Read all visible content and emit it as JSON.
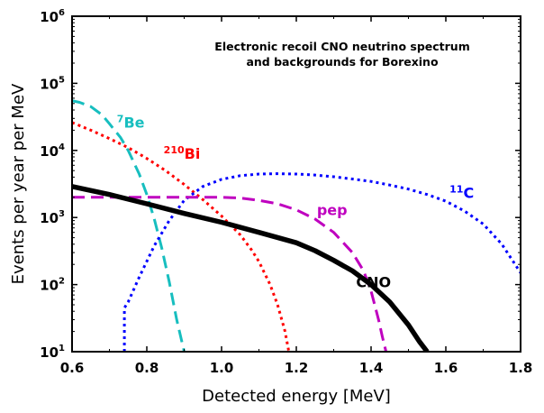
{
  "chart_data": {
    "type": "line",
    "title": "Electronic recoil CNO neutrino spectrum",
    "subtitle": "and backgrounds for Borexino",
    "xlabel": "Detected energy [MeV]",
    "ylabel": "Events per year per MeV",
    "xlim": [
      0.6,
      1.8
    ],
    "ylim": [
      10,
      1000000
    ],
    "yscale": "log",
    "x_ticks": [
      0.6,
      0.8,
      1.0,
      1.2,
      1.4,
      1.6,
      1.8
    ],
    "x_tick_labels": [
      "0.6",
      "0.8",
      "1.0",
      "1.2",
      "1.4",
      "1.6",
      "1.8"
    ],
    "y_ticks": [
      10,
      100,
      1000,
      10000,
      100000,
      1000000
    ],
    "y_tick_labels": [
      {
        "base": "10",
        "exp": "1"
      },
      {
        "base": "10",
        "exp": "2"
      },
      {
        "base": "10",
        "exp": "3"
      },
      {
        "base": "10",
        "exp": "4"
      },
      {
        "base": "10",
        "exp": "5"
      },
      {
        "base": "10",
        "exp": "6"
      }
    ],
    "series": [
      {
        "name": "7Be",
        "label_sup": "7",
        "label_main": "Be",
        "label_at": [
          0.72,
          22000
        ],
        "color": "#17bebf",
        "dash": "dashed",
        "width": 3,
        "x": [
          0.6,
          0.62,
          0.65,
          0.68,
          0.7,
          0.73,
          0.75,
          0.78,
          0.8,
          0.82,
          0.84,
          0.86,
          0.88,
          0.9
        ],
        "y": [
          55000,
          52000,
          45000,
          34000,
          25000,
          15500,
          10000,
          4400,
          2200,
          950,
          350,
          110,
          30,
          10
        ]
      },
      {
        "name": "210Bi",
        "label_sup": "210",
        "label_main": "Bi",
        "label_at": [
          0.845,
          7500
        ],
        "color": "#ff0000",
        "dash": "dotted",
        "width": 3,
        "x": [
          0.6,
          0.65,
          0.7,
          0.75,
          0.8,
          0.85,
          0.9,
          0.95,
          1.0,
          1.05,
          1.08,
          1.1,
          1.13,
          1.15,
          1.17,
          1.18
        ],
        "y": [
          26000,
          20000,
          15000,
          11000,
          7600,
          5000,
          3100,
          1850,
          1050,
          550,
          330,
          220,
          100,
          50,
          20,
          10
        ]
      },
      {
        "name": "11C",
        "label_sup": "11",
        "label_main": "C",
        "label_at": [
          1.61,
          1950
        ],
        "color": "#0000ff",
        "dash": "dotted",
        "width": 3,
        "x": [
          0.74,
          0.74,
          0.75,
          0.78,
          0.82,
          0.86,
          0.9,
          0.95,
          1.0,
          1.05,
          1.1,
          1.15,
          1.2,
          1.25,
          1.3,
          1.35,
          1.4,
          1.45,
          1.5,
          1.55,
          1.6,
          1.65,
          1.7,
          1.75,
          1.8
        ],
        "y": [
          10,
          45,
          55,
          130,
          380,
          900,
          1800,
          2900,
          3700,
          4200,
          4450,
          4500,
          4450,
          4300,
          4050,
          3750,
          3450,
          3050,
          2650,
          2200,
          1750,
          1250,
          800,
          400,
          150
        ]
      },
      {
        "name": "pep",
        "label_sup": "",
        "label_main": "pep",
        "label_at": [
          1.255,
          1080
        ],
        "color": "#bf00bf",
        "dash": "dashed",
        "width": 3,
        "x": [
          0.6,
          0.8,
          1.0,
          1.05,
          1.1,
          1.15,
          1.2,
          1.25,
          1.3,
          1.35,
          1.38,
          1.4,
          1.42,
          1.43,
          1.44
        ],
        "y": [
          2000,
          2000,
          2000,
          1950,
          1800,
          1600,
          1300,
          950,
          600,
          300,
          160,
          80,
          30,
          17,
          10
        ]
      },
      {
        "name": "CNO",
        "label_sup": "",
        "label_main": "CNO",
        "label_at": [
          1.36,
          92
        ],
        "color": "#000000",
        "dash": "solid",
        "width": 5.5,
        "x": [
          0.6,
          0.7,
          0.8,
          0.9,
          1.0,
          1.1,
          1.2,
          1.25,
          1.3,
          1.35,
          1.4,
          1.45,
          1.5,
          1.53,
          1.55
        ],
        "y": [
          2900,
          2200,
          1600,
          1150,
          850,
          600,
          420,
          320,
          230,
          160,
          100,
          55,
          25,
          14,
          10
        ]
      }
    ]
  }
}
